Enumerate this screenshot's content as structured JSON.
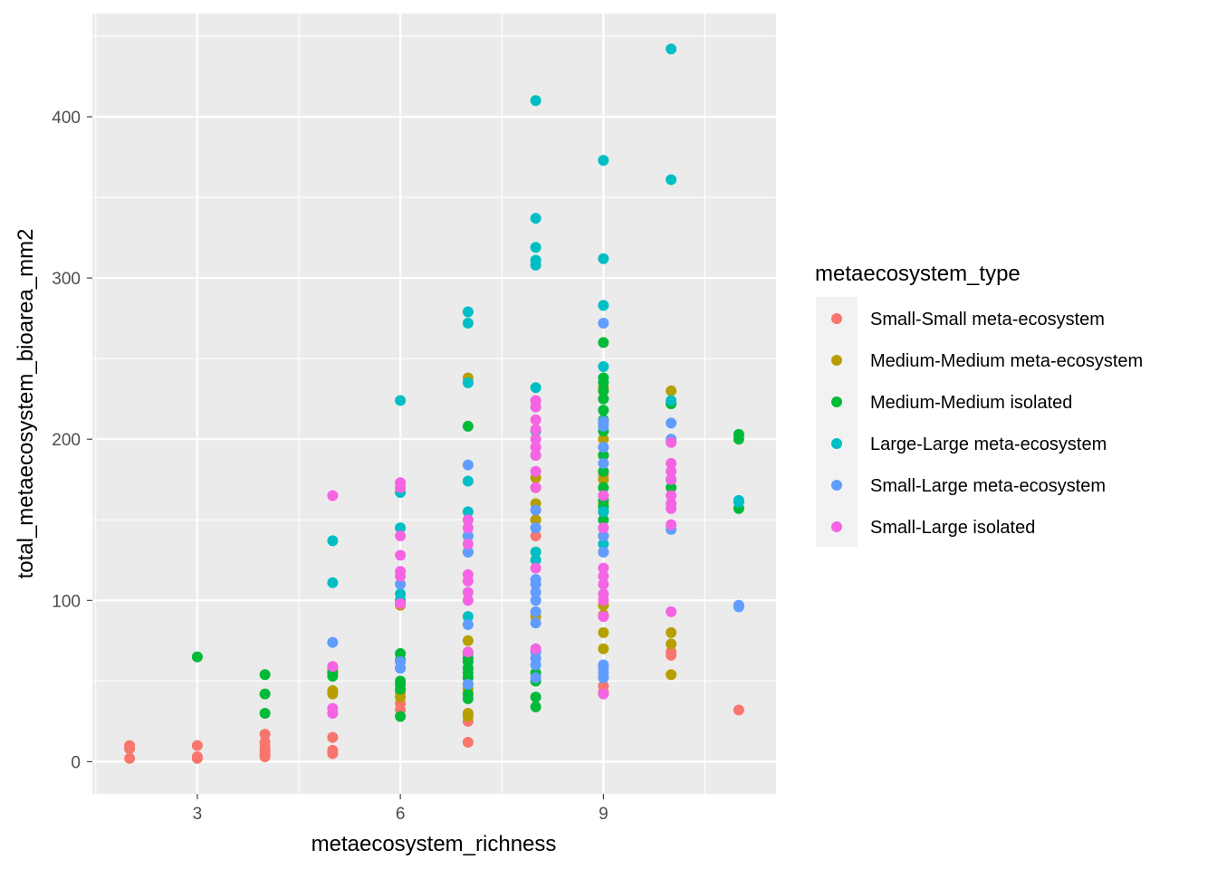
{
  "chart_data": {
    "type": "scatter",
    "xlabel": "metaecosystem_richness",
    "ylabel": "total_metaecosystem_bioarea_mm2",
    "xlim": [
      1.45,
      11.55
    ],
    "ylim": [
      -20,
      464
    ],
    "x_ticks": [
      3,
      6,
      9
    ],
    "y_ticks": [
      0,
      100,
      200,
      300,
      400
    ],
    "x_tick_labels": [
      "3",
      "6",
      "9"
    ],
    "y_tick_labels": [
      "0",
      "100",
      "200",
      "300",
      "400"
    ],
    "grid": true,
    "legend": {
      "title": "metaecosystem_type",
      "position": "right"
    },
    "series": [
      {
        "name": "Small-Small meta-ecosystem",
        "color": "#F8766D",
        "points": [
          [
            2,
            2
          ],
          [
            2,
            8
          ],
          [
            2,
            10
          ],
          [
            3,
            2
          ],
          [
            3,
            3
          ],
          [
            3,
            10
          ],
          [
            4,
            3
          ],
          [
            4,
            5
          ],
          [
            4,
            7
          ],
          [
            4,
            9
          ],
          [
            4,
            12
          ],
          [
            4,
            17
          ],
          [
            5,
            5
          ],
          [
            5,
            7
          ],
          [
            5,
            15
          ],
          [
            6,
            32
          ],
          [
            6,
            36
          ],
          [
            7,
            12
          ],
          [
            7,
            25
          ],
          [
            8,
            130
          ],
          [
            8,
            140
          ],
          [
            8,
            150
          ],
          [
            9,
            43
          ],
          [
            9,
            47
          ],
          [
            9,
            178
          ],
          [
            10,
            66
          ],
          [
            10,
            68
          ],
          [
            11,
            32
          ]
        ]
      },
      {
        "name": "Medium-Medium meta-ecosystem",
        "color": "#B79F00",
        "points": [
          [
            5,
            42
          ],
          [
            5,
            44
          ],
          [
            5,
            56
          ],
          [
            5,
            58
          ],
          [
            6,
            40
          ],
          [
            6,
            43
          ],
          [
            6,
            97
          ],
          [
            6,
            100
          ],
          [
            7,
            28
          ],
          [
            7,
            30
          ],
          [
            7,
            45
          ],
          [
            7,
            67
          ],
          [
            7,
            75
          ],
          [
            7,
            238
          ],
          [
            8,
            90
          ],
          [
            8,
            145
          ],
          [
            8,
            150
          ],
          [
            8,
            160
          ],
          [
            8,
            170
          ],
          [
            8,
            176
          ],
          [
            8,
            220
          ],
          [
            9,
            70
          ],
          [
            9,
            80
          ],
          [
            9,
            91
          ],
          [
            9,
            97
          ],
          [
            9,
            130
          ],
          [
            9,
            140
          ],
          [
            9,
            160
          ],
          [
            9,
            175
          ],
          [
            9,
            190
          ],
          [
            9,
            200
          ],
          [
            9,
            210
          ],
          [
            9,
            225
          ],
          [
            9,
            232
          ],
          [
            10,
            54
          ],
          [
            10,
            73
          ],
          [
            10,
            80
          ],
          [
            10,
            222
          ],
          [
            10,
            230
          ]
        ]
      },
      {
        "name": "Medium-Medium isolated",
        "color": "#00BA38",
        "points": [
          [
            3,
            65
          ],
          [
            4,
            30
          ],
          [
            4,
            42
          ],
          [
            4,
            54
          ],
          [
            5,
            53
          ],
          [
            5,
            55
          ],
          [
            6,
            28
          ],
          [
            6,
            45
          ],
          [
            6,
            48
          ],
          [
            6,
            50
          ],
          [
            6,
            58
          ],
          [
            6,
            63
          ],
          [
            6,
            67
          ],
          [
            7,
            39
          ],
          [
            7,
            42
          ],
          [
            7,
            48
          ],
          [
            7,
            52
          ],
          [
            7,
            55
          ],
          [
            7,
            58
          ],
          [
            7,
            62
          ],
          [
            7,
            64
          ],
          [
            7,
            130
          ],
          [
            7,
            208
          ],
          [
            8,
            34
          ],
          [
            8,
            40
          ],
          [
            8,
            50
          ],
          [
            8,
            55
          ],
          [
            9,
            150
          ],
          [
            9,
            155
          ],
          [
            9,
            158
          ],
          [
            9,
            162
          ],
          [
            9,
            170
          ],
          [
            9,
            180
          ],
          [
            9,
            190
          ],
          [
            9,
            205
          ],
          [
            9,
            212
          ],
          [
            9,
            218
          ],
          [
            9,
            225
          ],
          [
            9,
            230
          ],
          [
            9,
            235
          ],
          [
            9,
            238
          ],
          [
            9,
            260
          ],
          [
            10,
            170
          ],
          [
            10,
            175
          ],
          [
            10,
            222
          ],
          [
            11,
            157
          ],
          [
            11,
            200
          ],
          [
            11,
            203
          ]
        ]
      },
      {
        "name": "Large-Large meta-ecosystem",
        "color": "#00BFC4",
        "points": [
          [
            5,
            111
          ],
          [
            5,
            137
          ],
          [
            6,
            100
          ],
          [
            6,
            104
          ],
          [
            6,
            145
          ],
          [
            6,
            167
          ],
          [
            6,
            224
          ],
          [
            7,
            90
          ],
          [
            7,
            140
          ],
          [
            7,
            155
          ],
          [
            7,
            174
          ],
          [
            7,
            235
          ],
          [
            7,
            272
          ],
          [
            7,
            279
          ],
          [
            8,
            125
          ],
          [
            8,
            130
          ],
          [
            8,
            190
          ],
          [
            8,
            205
          ],
          [
            8,
            232
          ],
          [
            8,
            308
          ],
          [
            8,
            311
          ],
          [
            8,
            319
          ],
          [
            8,
            337
          ],
          [
            8,
            410
          ],
          [
            9,
            135
          ],
          [
            9,
            155
          ],
          [
            9,
            245
          ],
          [
            9,
            283
          ],
          [
            9,
            312
          ],
          [
            9,
            373
          ],
          [
            10,
            224
          ],
          [
            10,
            361
          ],
          [
            10,
            442
          ],
          [
            11,
            161
          ],
          [
            11,
            162
          ]
        ]
      },
      {
        "name": "Small-Large meta-ecosystem",
        "color": "#619CFF",
        "points": [
          [
            5,
            74
          ],
          [
            6,
            58
          ],
          [
            6,
            62
          ],
          [
            6,
            110
          ],
          [
            7,
            48
          ],
          [
            7,
            85
          ],
          [
            7,
            130
          ],
          [
            7,
            140
          ],
          [
            7,
            184
          ],
          [
            8,
            52
          ],
          [
            8,
            60
          ],
          [
            8,
            64
          ],
          [
            8,
            68
          ],
          [
            8,
            86
          ],
          [
            8,
            93
          ],
          [
            8,
            100
          ],
          [
            8,
            105
          ],
          [
            8,
            110
          ],
          [
            8,
            113
          ],
          [
            8,
            145
          ],
          [
            8,
            156
          ],
          [
            9,
            52
          ],
          [
            9,
            55
          ],
          [
            9,
            58
          ],
          [
            9,
            60
          ],
          [
            9,
            130
          ],
          [
            9,
            140
          ],
          [
            9,
            185
          ],
          [
            9,
            195
          ],
          [
            9,
            208
          ],
          [
            9,
            211
          ],
          [
            9,
            272
          ],
          [
            10,
            144
          ],
          [
            10,
            200
          ],
          [
            10,
            210
          ],
          [
            11,
            96
          ],
          [
            11,
            97
          ]
        ]
      },
      {
        "name": "Small-Large isolated",
        "color": "#F564E3",
        "points": [
          [
            5,
            30
          ],
          [
            5,
            33
          ],
          [
            5,
            59
          ],
          [
            5,
            165
          ],
          [
            6,
            98
          ],
          [
            6,
            115
          ],
          [
            6,
            118
          ],
          [
            6,
            128
          ],
          [
            6,
            140
          ],
          [
            6,
            170
          ],
          [
            6,
            173
          ],
          [
            7,
            68
          ],
          [
            7,
            100
          ],
          [
            7,
            105
          ],
          [
            7,
            112
          ],
          [
            7,
            116
          ],
          [
            7,
            135
          ],
          [
            7,
            145
          ],
          [
            7,
            150
          ],
          [
            8,
            70
          ],
          [
            8,
            120
          ],
          [
            8,
            170
          ],
          [
            8,
            180
          ],
          [
            8,
            190
          ],
          [
            8,
            195
          ],
          [
            8,
            200
          ],
          [
            8,
            206
          ],
          [
            8,
            212
          ],
          [
            8,
            220
          ],
          [
            8,
            224
          ],
          [
            9,
            42
          ],
          [
            9,
            90
          ],
          [
            9,
            100
          ],
          [
            9,
            104
          ],
          [
            9,
            110
          ],
          [
            9,
            115
          ],
          [
            9,
            120
          ],
          [
            9,
            145
          ],
          [
            9,
            165
          ],
          [
            10,
            93
          ],
          [
            10,
            147
          ],
          [
            10,
            157
          ],
          [
            10,
            160
          ],
          [
            10,
            165
          ],
          [
            10,
            175
          ],
          [
            10,
            180
          ],
          [
            10,
            185
          ],
          [
            10,
            198
          ]
        ]
      }
    ]
  }
}
